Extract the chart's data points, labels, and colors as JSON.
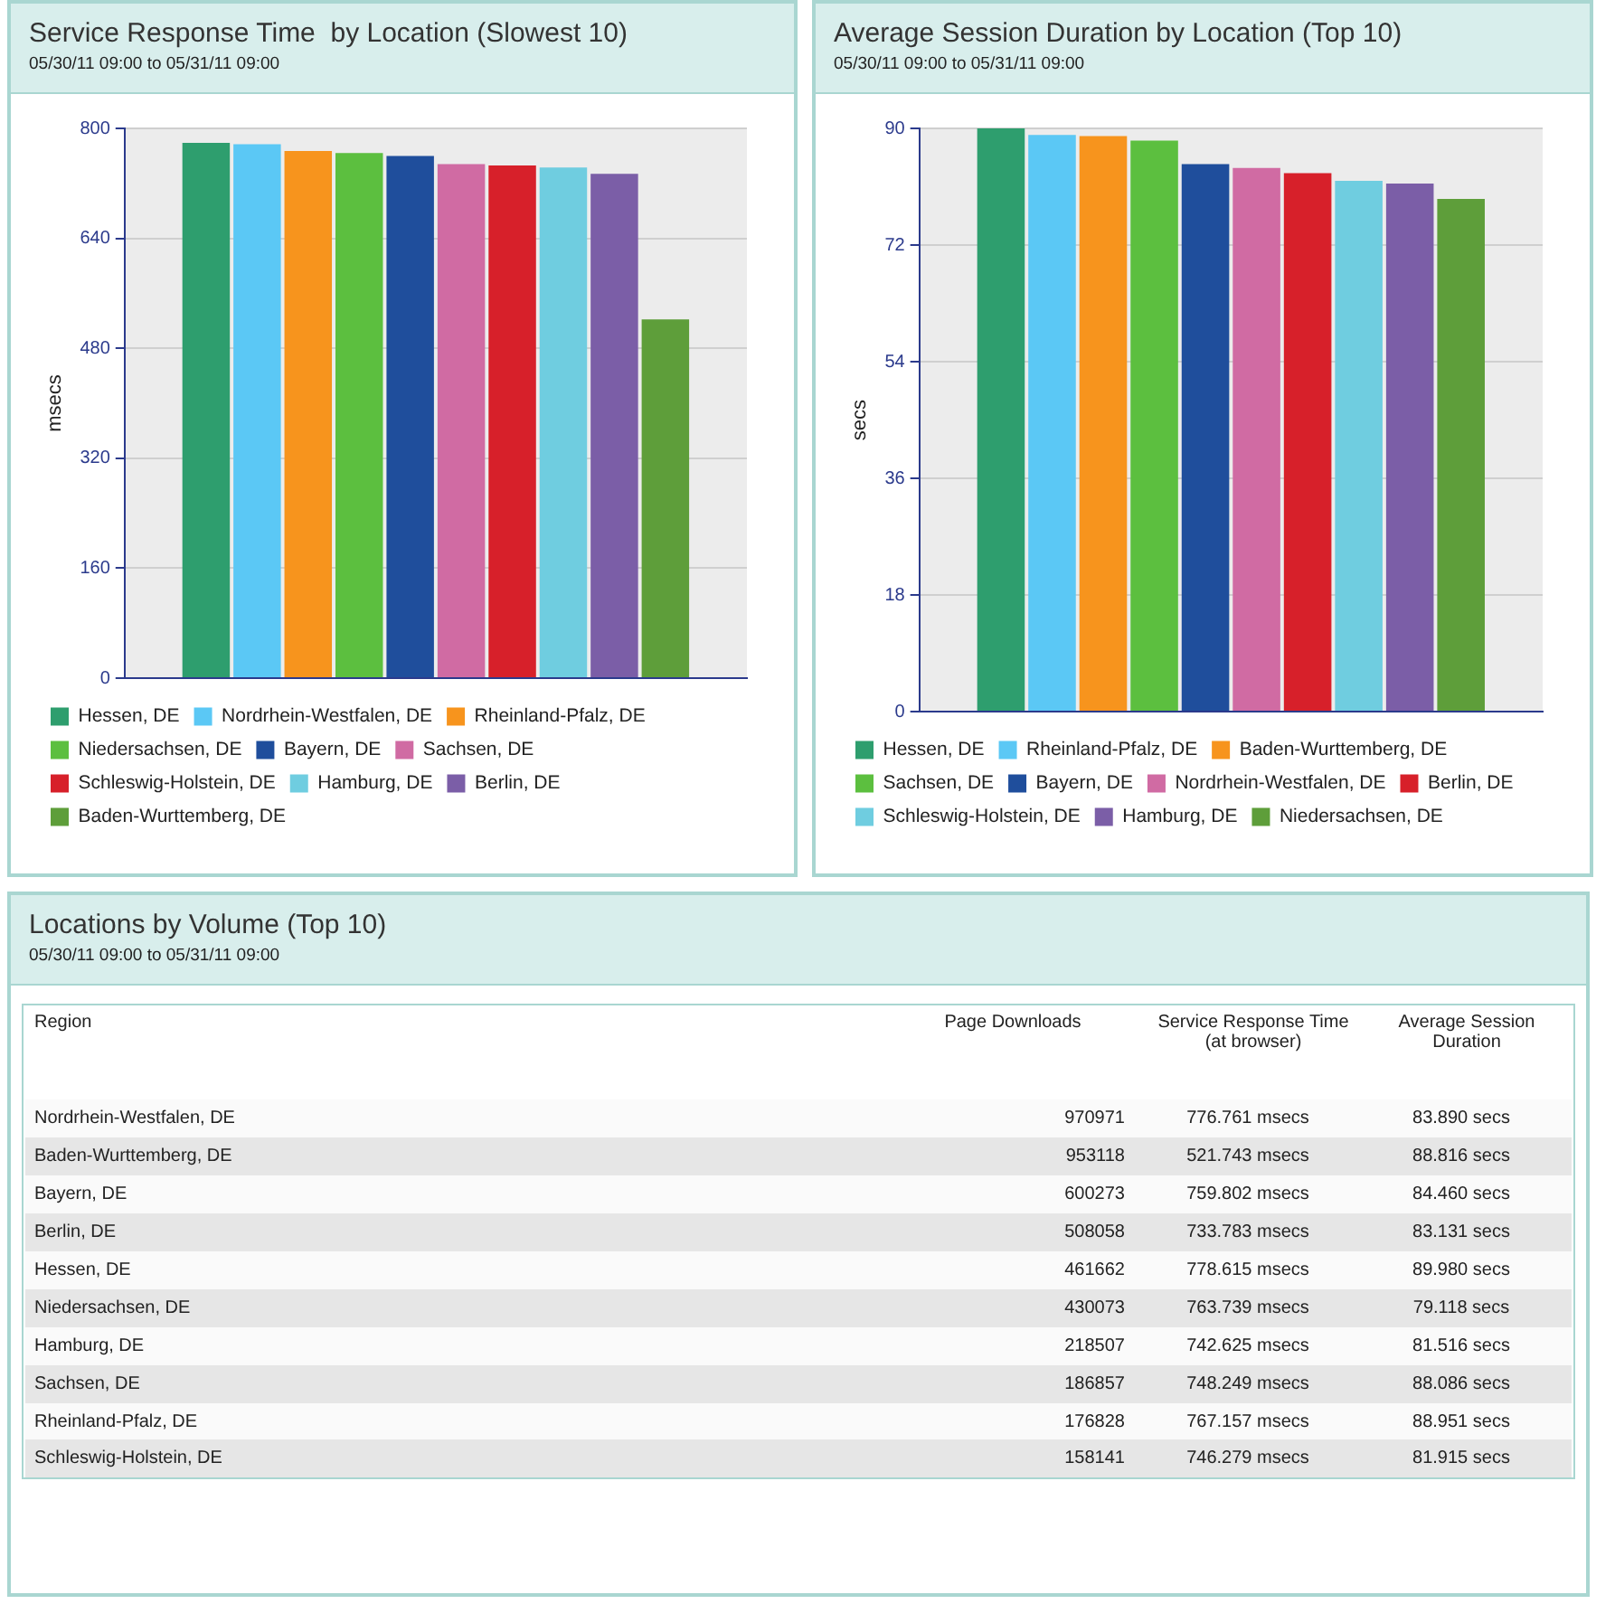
{
  "chart_data": [
    {
      "type": "bar",
      "title": "Service Response Time  by Location (Slowest 10)",
      "subtitle": "05/30/11 09:00 to 05/31/11 09:00",
      "ylabel": "msecs",
      "categories": [
        null
      ],
      "series": [
        {
          "name": "Hessen, DE",
          "color": "#2e9e6e",
          "values": [
            779
          ]
        },
        {
          "name": "Nordrhein-Westfalen, DE",
          "color": "#5bc8f5",
          "values": [
            777
          ]
        },
        {
          "name": "Rheinland-Pfalz, DE",
          "color": "#f7941d",
          "values": [
            767
          ]
        },
        {
          "name": "Niedersachsen, DE",
          "color": "#5cbf3f",
          "values": [
            764
          ]
        },
        {
          "name": "Bayern, DE",
          "color": "#1f4e9c",
          "values": [
            760
          ]
        },
        {
          "name": "Sachsen, DE",
          "color": "#d06ba3",
          "values": [
            748
          ]
        },
        {
          "name": "Schleswig-Holstein, DE",
          "color": "#d7202a",
          "values": [
            746
          ]
        },
        {
          "name": "Hamburg, DE",
          "color": "#6fcde0",
          "values": [
            743
          ]
        },
        {
          "name": "Berlin, DE",
          "color": "#7b5ea7",
          "values": [
            734
          ]
        },
        {
          "name": "Baden-Wurttemberg, DE",
          "color": "#5e9e3a",
          "values": [
            522
          ]
        }
      ],
      "ylim": [
        0,
        800
      ],
      "yticks": [
        0,
        160,
        320,
        480,
        640,
        800
      ],
      "grid": "y",
      "legend": "bottom",
      "tick_labels": "y"
    },
    {
      "type": "bar",
      "title": "Average Session Duration by Location (Top 10)",
      "subtitle": "05/30/11 09:00 to 05/31/11 09:00",
      "ylabel": "secs",
      "categories": [
        null
      ],
      "series": [
        {
          "name": "Hessen, DE",
          "color": "#2e9e6e",
          "values": [
            90.0
          ]
        },
        {
          "name": "Rheinland-Pfalz, DE",
          "color": "#5bc8f5",
          "values": [
            89.0
          ]
        },
        {
          "name": "Baden-Wurttemberg, DE",
          "color": "#f7941d",
          "values": [
            88.8
          ]
        },
        {
          "name": "Sachsen, DE",
          "color": "#5cbf3f",
          "values": [
            88.1
          ]
        },
        {
          "name": "Bayern, DE",
          "color": "#1f4e9c",
          "values": [
            84.5
          ]
        },
        {
          "name": "Nordrhein-Westfalen, DE",
          "color": "#d06ba3",
          "values": [
            83.9
          ]
        },
        {
          "name": "Berlin, DE",
          "color": "#d7202a",
          "values": [
            83.1
          ]
        },
        {
          "name": "Schleswig-Holstein, DE",
          "color": "#6fcde0",
          "values": [
            81.9
          ]
        },
        {
          "name": "Hamburg, DE",
          "color": "#7b5ea7",
          "values": [
            81.5
          ]
        },
        {
          "name": "Niedersachsen, DE",
          "color": "#5e9e3a",
          "values": [
            79.1
          ]
        }
      ],
      "ylim": [
        0,
        90
      ],
      "yticks": [
        0,
        18,
        36,
        54,
        72,
        90
      ],
      "grid": "y",
      "legend": "bottom",
      "tick_labels": "y"
    },
    {
      "type": "other",
      "title": "Locations by Volume (Top 10)",
      "subtitle": "05/30/11 09:00 to 05/31/11 09:00",
      "annotations": [
        "Region",
        "Page Downloads",
        "Service Response Time (at browser)",
        "Average Session Duration",
        "Nordrhein-Westfalen, DE",
        "970971",
        "776.761 msecs",
        "83.890 secs",
        "Baden-Wurttemberg, DE",
        "953118",
        "521.743 msecs",
        "88.816 secs",
        "Bayern, DE",
        "600273",
        "759.802 msecs",
        "84.460 secs",
        "Berlin, DE",
        "508058",
        "733.783 msecs",
        "83.131 secs",
        "Hessen, DE",
        "461662",
        "778.615 msecs",
        "89.980 secs",
        "Niedersachsen, DE",
        "430073",
        "763.739 msecs",
        "79.118 secs",
        "Hamburg, DE",
        "218507",
        "742.625 msecs",
        "81.516 secs",
        "Sachsen, DE",
        "186857",
        "748.249 msecs",
        "88.086 secs",
        "Rheinland-Pfalz, DE",
        "176828",
        "767.157 msecs",
        "88.951 secs",
        "Schleswig-Holstein, DE",
        "158141",
        "746.279 msecs",
        "81.915 secs"
      ]
    }
  ]
}
